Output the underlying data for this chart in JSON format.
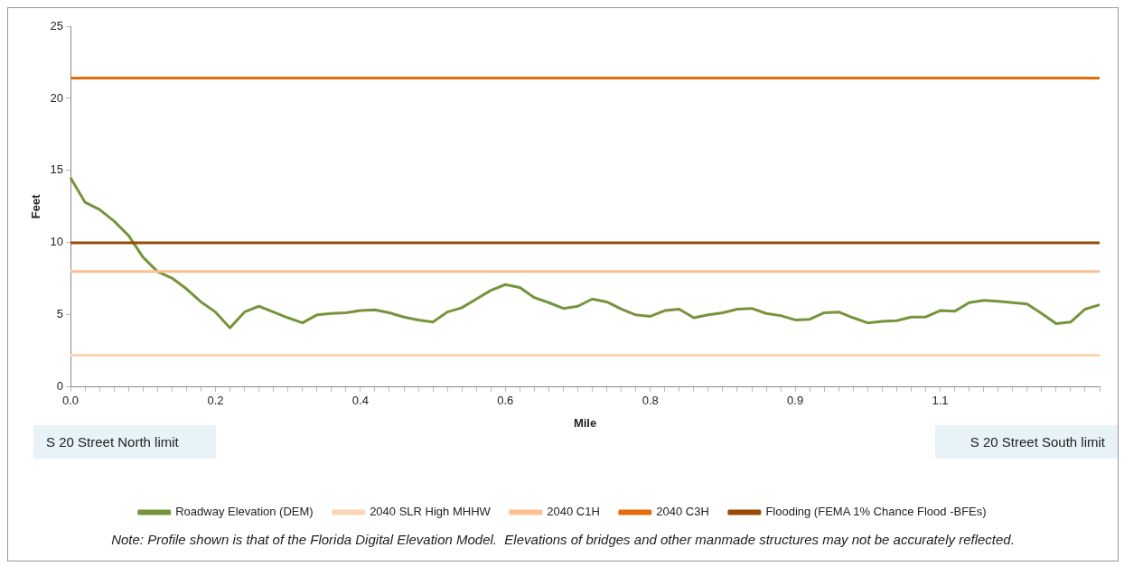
{
  "chart_data": {
    "type": "line",
    "xlabel": "Mile",
    "ylabel": "Feet",
    "categories": [
      "0.0",
      null,
      null,
      null,
      null,
      null,
      null,
      null,
      null,
      null,
      "0.2",
      null,
      null,
      null,
      null,
      null,
      null,
      null,
      null,
      null,
      "0.4",
      null,
      null,
      null,
      null,
      null,
      null,
      null,
      null,
      null,
      "0.6",
      null,
      null,
      null,
      null,
      null,
      null,
      null,
      null,
      null,
      "0.8",
      null,
      null,
      null,
      null,
      null,
      null,
      null,
      null,
      null,
      "0.9",
      null,
      null,
      null,
      null,
      null,
      null,
      null,
      null,
      null,
      "1.1",
      null,
      null,
      null,
      null,
      null,
      null,
      null,
      null,
      null,
      null,
      null
    ],
    "ylim": [
      0,
      25
    ],
    "yticks": [
      0,
      5,
      10,
      15,
      20,
      25
    ],
    "grid": false,
    "legend": "bottom",
    "marker": "none",
    "line_style": "solid",
    "series": [
      {
        "name": "Roadway Elevation (DEM)",
        "color": "#77933c",
        "values": [
          14.5,
          12.8,
          12.3,
          11.5,
          10.5,
          9.0,
          8.0,
          7.55,
          6.8,
          5.9,
          5.2,
          4.1,
          5.2,
          5.6,
          5.2,
          4.8,
          4.45,
          5.0,
          5.1,
          5.15,
          5.3,
          5.35,
          5.15,
          4.85,
          4.65,
          4.5,
          5.2,
          5.5,
          6.1,
          6.7,
          7.1,
          6.9,
          6.2,
          5.85,
          5.45,
          5.6,
          6.1,
          5.9,
          5.4,
          5.0,
          4.9,
          5.3,
          5.4,
          4.8,
          5.0,
          5.15,
          5.4,
          5.45,
          5.1,
          4.95,
          4.65,
          4.7,
          5.15,
          5.2,
          4.8,
          4.45,
          4.55,
          4.6,
          4.85,
          4.85,
          5.3,
          5.25,
          5.85,
          6.0,
          5.95,
          5.85,
          5.75,
          5.1,
          4.4,
          4.5,
          5.4,
          5.7
        ]
      },
      {
        "name": "2040 SLR High MHHW",
        "color": "#fcd5b5",
        "values": [
          2.2,
          2.2,
          2.2,
          2.2,
          2.2,
          2.2,
          2.2,
          2.2,
          2.2,
          2.2,
          2.2,
          2.2,
          2.2,
          2.2,
          2.2,
          2.2,
          2.2,
          2.2,
          2.2,
          2.2,
          2.2,
          2.2,
          2.2,
          2.2,
          2.2,
          2.2,
          2.2,
          2.2,
          2.2,
          2.2,
          2.2,
          2.2,
          2.2,
          2.2,
          2.2,
          2.2,
          2.2,
          2.2,
          2.2,
          2.2,
          2.2,
          2.2,
          2.2,
          2.2,
          2.2,
          2.2,
          2.2,
          2.2,
          2.2,
          2.2,
          2.2,
          2.2,
          2.2,
          2.2,
          2.2,
          2.2,
          2.2,
          2.2,
          2.2,
          2.2,
          2.2,
          2.2,
          2.2,
          2.2,
          2.2,
          2.2,
          2.2,
          2.2,
          2.2,
          2.2,
          2.2,
          2.2
        ]
      },
      {
        "name": "2040 C1H",
        "color": "#fac090",
        "values": [
          8,
          8,
          8,
          8,
          8,
          8,
          8,
          8,
          8,
          8,
          8,
          8,
          8,
          8,
          8,
          8,
          8,
          8,
          8,
          8,
          8,
          8,
          8,
          8,
          8,
          8,
          8,
          8,
          8,
          8,
          8,
          8,
          8,
          8,
          8,
          8,
          8,
          8,
          8,
          8,
          8,
          8,
          8,
          8,
          8,
          8,
          8,
          8,
          8,
          8,
          8,
          8,
          8,
          8,
          8,
          8,
          8,
          8,
          8,
          8,
          8,
          8,
          8,
          8,
          8,
          8,
          8,
          8,
          8,
          8,
          8,
          8
        ]
      },
      {
        "name": "2040 C3H",
        "color": "#e46c0a",
        "values": [
          21.4,
          21.4,
          21.4,
          21.4,
          21.4,
          21.4,
          21.4,
          21.4,
          21.4,
          21.4,
          21.4,
          21.4,
          21.4,
          21.4,
          21.4,
          21.4,
          21.4,
          21.4,
          21.4,
          21.4,
          21.4,
          21.4,
          21.4,
          21.4,
          21.4,
          21.4,
          21.4,
          21.4,
          21.4,
          21.4,
          21.4,
          21.4,
          21.4,
          21.4,
          21.4,
          21.4,
          21.4,
          21.4,
          21.4,
          21.4,
          21.4,
          21.4,
          21.4,
          21.4,
          21.4,
          21.4,
          21.4,
          21.4,
          21.4,
          21.4,
          21.4,
          21.4,
          21.4,
          21.4,
          21.4,
          21.4,
          21.4,
          21.4,
          21.4,
          21.4,
          21.4,
          21.4,
          21.4,
          21.4,
          21.4,
          21.4,
          21.4,
          21.4,
          21.4,
          21.4,
          21.4,
          21.4
        ]
      },
      {
        "name": "Flooding (FEMA 1% Chance Flood -BFEs)",
        "color": "#984807",
        "values": [
          10,
          10,
          10,
          10,
          10,
          10,
          10,
          10,
          10,
          10,
          10,
          10,
          10,
          10,
          10,
          10,
          10,
          10,
          10,
          10,
          10,
          10,
          10,
          10,
          10,
          10,
          10,
          10,
          10,
          10,
          10,
          10,
          10,
          10,
          10,
          10,
          10,
          10,
          10,
          10,
          10,
          10,
          10,
          10,
          10,
          10,
          10,
          10,
          10,
          10,
          10,
          10,
          10,
          10,
          10,
          10,
          10,
          10,
          10,
          10,
          10,
          10,
          10,
          10,
          10,
          10,
          10,
          10,
          10,
          10,
          10,
          10
        ]
      }
    ],
    "annotations": [
      "S 20 Street North limit",
      "S 20 Street South limit",
      "Note: Profile shown is that of the Florida Digital Elevation Model.  Elevations of bridges and other manmade structures may not be accurately reflected."
    ]
  }
}
